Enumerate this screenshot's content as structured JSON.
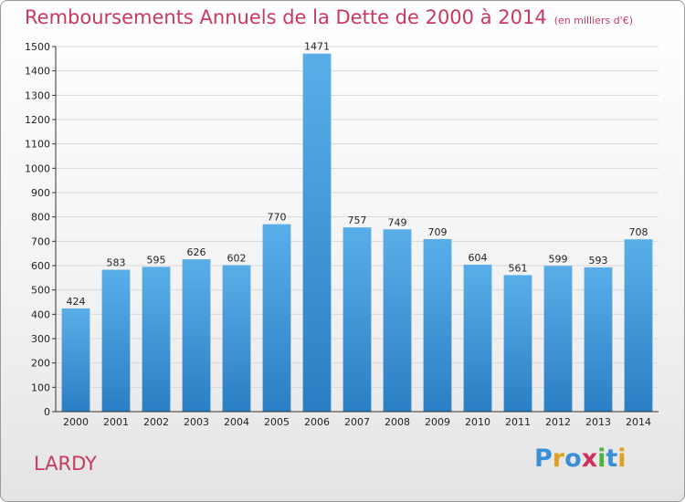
{
  "header": {
    "title": "Remboursements Annuels de la Dette de 2000 à 2014",
    "unit": "(en milliers d'€)"
  },
  "footer": {
    "city": "LARDY",
    "logo": [
      "P",
      "r",
      "o",
      "x",
      "i",
      "t",
      "i"
    ]
  },
  "colors": {
    "title": "#c8385f",
    "bar_top": "#5aaee8",
    "bar_bottom": "#2a7fc4",
    "logo": [
      "#3a8fd8",
      "#e0a020",
      "#3a8fd8",
      "#d03060",
      "#50b040",
      "#3a8fd8",
      "#e0a020"
    ]
  },
  "chart_data": {
    "type": "bar",
    "categories": [
      "2000",
      "2001",
      "2002",
      "2003",
      "2004",
      "2005",
      "2006",
      "2007",
      "2008",
      "2009",
      "2010",
      "2011",
      "2012",
      "2013",
      "2014"
    ],
    "values": [
      424,
      583,
      595,
      626,
      602,
      770,
      1471,
      757,
      749,
      709,
      604,
      561,
      599,
      593,
      708
    ],
    "ylim": [
      0,
      1500
    ],
    "yticks": [
      0,
      100,
      200,
      300,
      400,
      500,
      600,
      700,
      800,
      900,
      1000,
      1100,
      1200,
      1300,
      1400,
      1500
    ],
    "grid": true
  }
}
